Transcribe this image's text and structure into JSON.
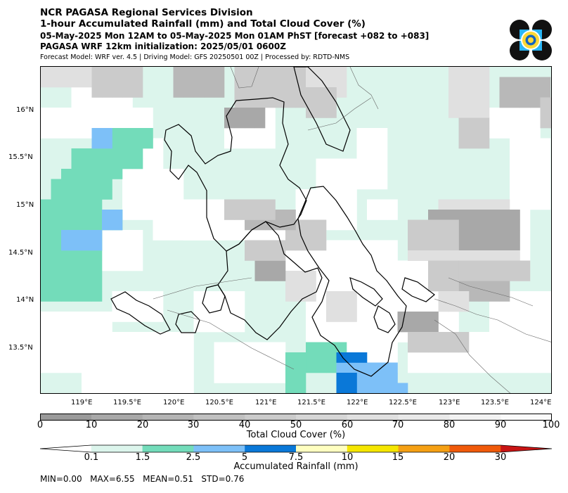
{
  "header": {
    "title": "NCR PAGASA Regional Services Division",
    "subtitle": "1-hour Accumulated Rainfall (mm) and Total Cloud Cover (%)",
    "period": "05-May-2025 Mon 12AM to 05-May-2025 Mon 01AM PhST [forecast +082 to +083]",
    "init": "PAGASA WRF 12km initialization: 2025/05/01 0600Z",
    "model_info": "Forecast Model: WRF ver. 4.5 | Driving Model: GFS 20250501 00Z | Processed by: RDTD-NMS"
  },
  "logo": {
    "icon": "pagasa-logo-icon",
    "colors": [
      "#111111",
      "#29b6f6",
      "#fdd835",
      "#1565c0"
    ]
  },
  "map": {
    "lat_labels": [
      "16°N",
      "15.5°N",
      "15°N",
      "14.5°N",
      "14°N",
      "13.5°N"
    ],
    "lon_labels": [
      "119°E",
      "119.5°E",
      "120°E",
      "120.5°E",
      "121°E",
      "121.5°E",
      "122°E",
      "122.5°E",
      "123°E",
      "123.5°E",
      "124°E"
    ],
    "background_color": "#dcf5ec"
  },
  "cloud_colorbar": {
    "ticks": [
      "0",
      "10",
      "20",
      "30",
      "40",
      "50",
      "60",
      "70",
      "80",
      "90",
      "100"
    ],
    "colors": [
      "#9a9a9a",
      "#a8a8a8",
      "#b4b4b4",
      "#c0c0c0",
      "#cbcbcb",
      "#d6d6d6",
      "#e0e0e0",
      "#e9e9e9",
      "#f2f2f2",
      "#fafafa"
    ],
    "label": "Total Cloud Cover (%)"
  },
  "rain_colorbar": {
    "ticks": [
      "0.1",
      "1.5",
      "2.5",
      "5",
      "7.5",
      "10",
      "15",
      "20",
      "30"
    ],
    "colors": [
      "#ffffff",
      "#dcf5ec",
      "#73dcba",
      "#7dc0f8",
      "#0a78d8",
      "#ffffc0",
      "#f5e600",
      "#f5a014",
      "#f05a0a",
      "#c81414"
    ],
    "label": "Accumulated Rainfall (mm)"
  },
  "stats": "MIN=0.00   MAX=6.55   MEAN=0.51   STD=0.76"
}
